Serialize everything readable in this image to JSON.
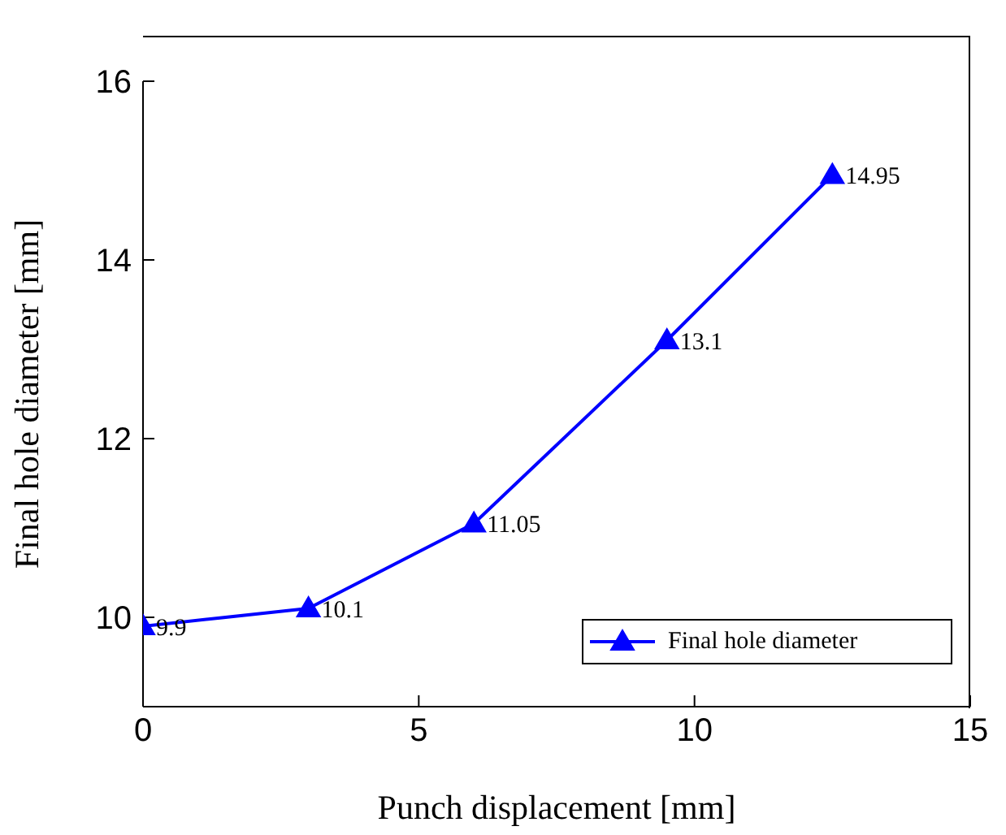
{
  "chart_data": {
    "type": "line",
    "xlabel": "Punch displacement [mm]",
    "ylabel": "Final hole diameter [mm]",
    "x": [
      0,
      3,
      6,
      9.5,
      12.5
    ],
    "series": [
      {
        "name": "Final hole diameter",
        "color": "#0000ff",
        "values": [
          9.9,
          10.1,
          11.05,
          13.1,
          14.95
        ]
      }
    ],
    "xlim": [
      0,
      15
    ],
    "xticks": [
      0,
      5,
      10,
      15
    ],
    "ylim": [
      9,
      16
    ],
    "yticks": [
      10,
      12,
      14,
      16
    ],
    "legend": "bottom right",
    "marker": "triangle",
    "line_style": "solid",
    "data_labels": true
  }
}
